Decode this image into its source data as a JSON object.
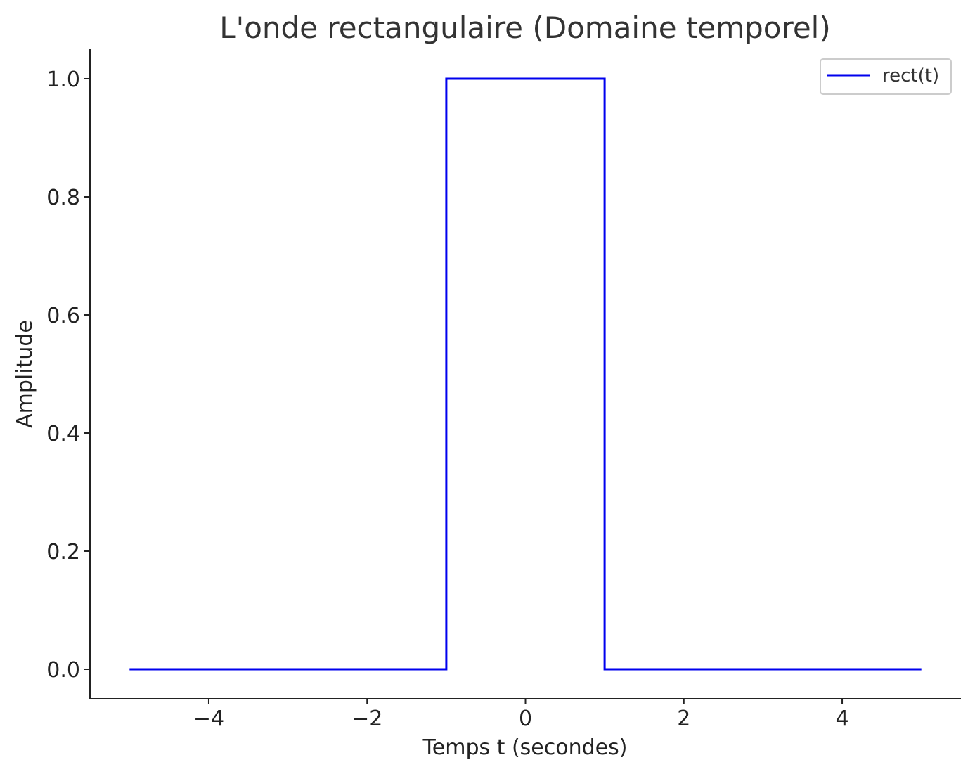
{
  "chart_data": {
    "type": "line",
    "title": "L'onde rectangulaire (Domaine temporel)",
    "xlabel": "Temps t (secondes)",
    "ylabel": "Amplitude",
    "xlim": [
      -5.5,
      5.5
    ],
    "ylim": [
      -0.05,
      1.05
    ],
    "xticks": [
      -4,
      -2,
      0,
      2,
      4
    ],
    "xtick_labels": [
      "−4",
      "−2",
      "0",
      "2",
      "4"
    ],
    "yticks": [
      0.0,
      0.2,
      0.4,
      0.6,
      0.8,
      1.0
    ],
    "ytick_labels": [
      "0.0",
      "0.2",
      "0.4",
      "0.6",
      "0.8",
      "1.0"
    ],
    "grid": false,
    "legend_position": "top-right",
    "series": [
      {
        "name": "rect(t)",
        "color": "#0000ee",
        "x": [
          -5,
          -1,
          -1,
          1,
          1,
          5
        ],
        "y": [
          0,
          0,
          1,
          1,
          0,
          0
        ]
      }
    ]
  }
}
